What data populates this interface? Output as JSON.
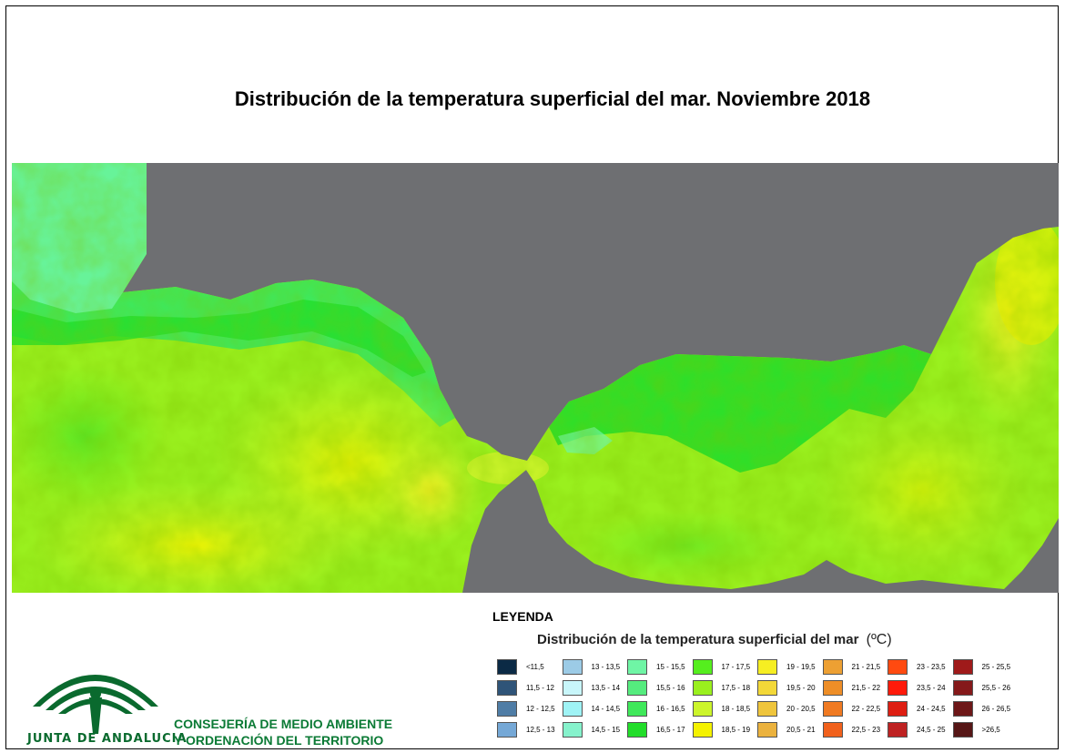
{
  "title": "Distribución de la temperatura superficial del mar. Noviembre 2018",
  "legend": {
    "heading": "LEYENDA",
    "subtitle": "Distribución de la temperatura superficial del mar",
    "unit": "(ºC)",
    "items": [
      {
        "label": "<11,5",
        "color": "#0b2a45"
      },
      {
        "label": "11,5 - 12",
        "color": "#2f5478"
      },
      {
        "label": "12 - 12,5",
        "color": "#4f7da6"
      },
      {
        "label": "12,5 - 13",
        "color": "#75a8d6"
      },
      {
        "label": "13 - 13,5",
        "color": "#9ccbe6"
      },
      {
        "label": "13,5 - 14",
        "color": "#c8f6fa"
      },
      {
        "label": "14 - 14,5",
        "color": "#9ff3f5"
      },
      {
        "label": "14,5 - 15",
        "color": "#86f2cc"
      },
      {
        "label": "15 - 15,5",
        "color": "#6ff5a5"
      },
      {
        "label": "15,5 - 16",
        "color": "#55ec7e"
      },
      {
        "label": "16 - 16,5",
        "color": "#3fe85a"
      },
      {
        "label": "16,5 - 17",
        "color": "#22dd2a"
      },
      {
        "label": "17 - 17,5",
        "color": "#55ee1e"
      },
      {
        "label": "17,5 - 18",
        "color": "#9af01e"
      },
      {
        "label": "18 - 18,5",
        "color": "#ccf52b"
      },
      {
        "label": "18,5 - 19",
        "color": "#f4f200"
      },
      {
        "label": "19 - 19,5",
        "color": "#f6ee22"
      },
      {
        "label": "19,5 - 20",
        "color": "#f3d838"
      },
      {
        "label": "20 - 20,5",
        "color": "#efc53c"
      },
      {
        "label": "20,5 - 21",
        "color": "#ebb23e"
      },
      {
        "label": "21 - 21,5",
        "color": "#eda033"
      },
      {
        "label": "21,5 - 22",
        "color": "#ee8e27"
      },
      {
        "label": "22 - 22,5",
        "color": "#f07a22"
      },
      {
        "label": "22,5 - 23",
        "color": "#f1611c"
      },
      {
        "label": "23 - 23,5",
        "color": "#ff4a10"
      },
      {
        "label": "23,5 - 24",
        "color": "#ff1a0a"
      },
      {
        "label": "24 - 24,5",
        "color": "#de1e12"
      },
      {
        "label": "24,5 - 25",
        "color": "#be2222"
      },
      {
        "label": "25 - 25,5",
        "color": "#9f1a1a"
      },
      {
        "label": "25,5 - 26",
        "color": "#85191a"
      },
      {
        "label": "26 - 26,5",
        "color": "#6d1718"
      },
      {
        "label": ">26,5",
        "color": "#561616"
      }
    ]
  },
  "logo_text": "JUNTA DE ANDALUCIA",
  "org": {
    "line1": "CONSEJERÍA DE MEDIO AMBIENTE",
    "line2": "Y ORDENACIÓN DEL TERRITORIO"
  }
}
